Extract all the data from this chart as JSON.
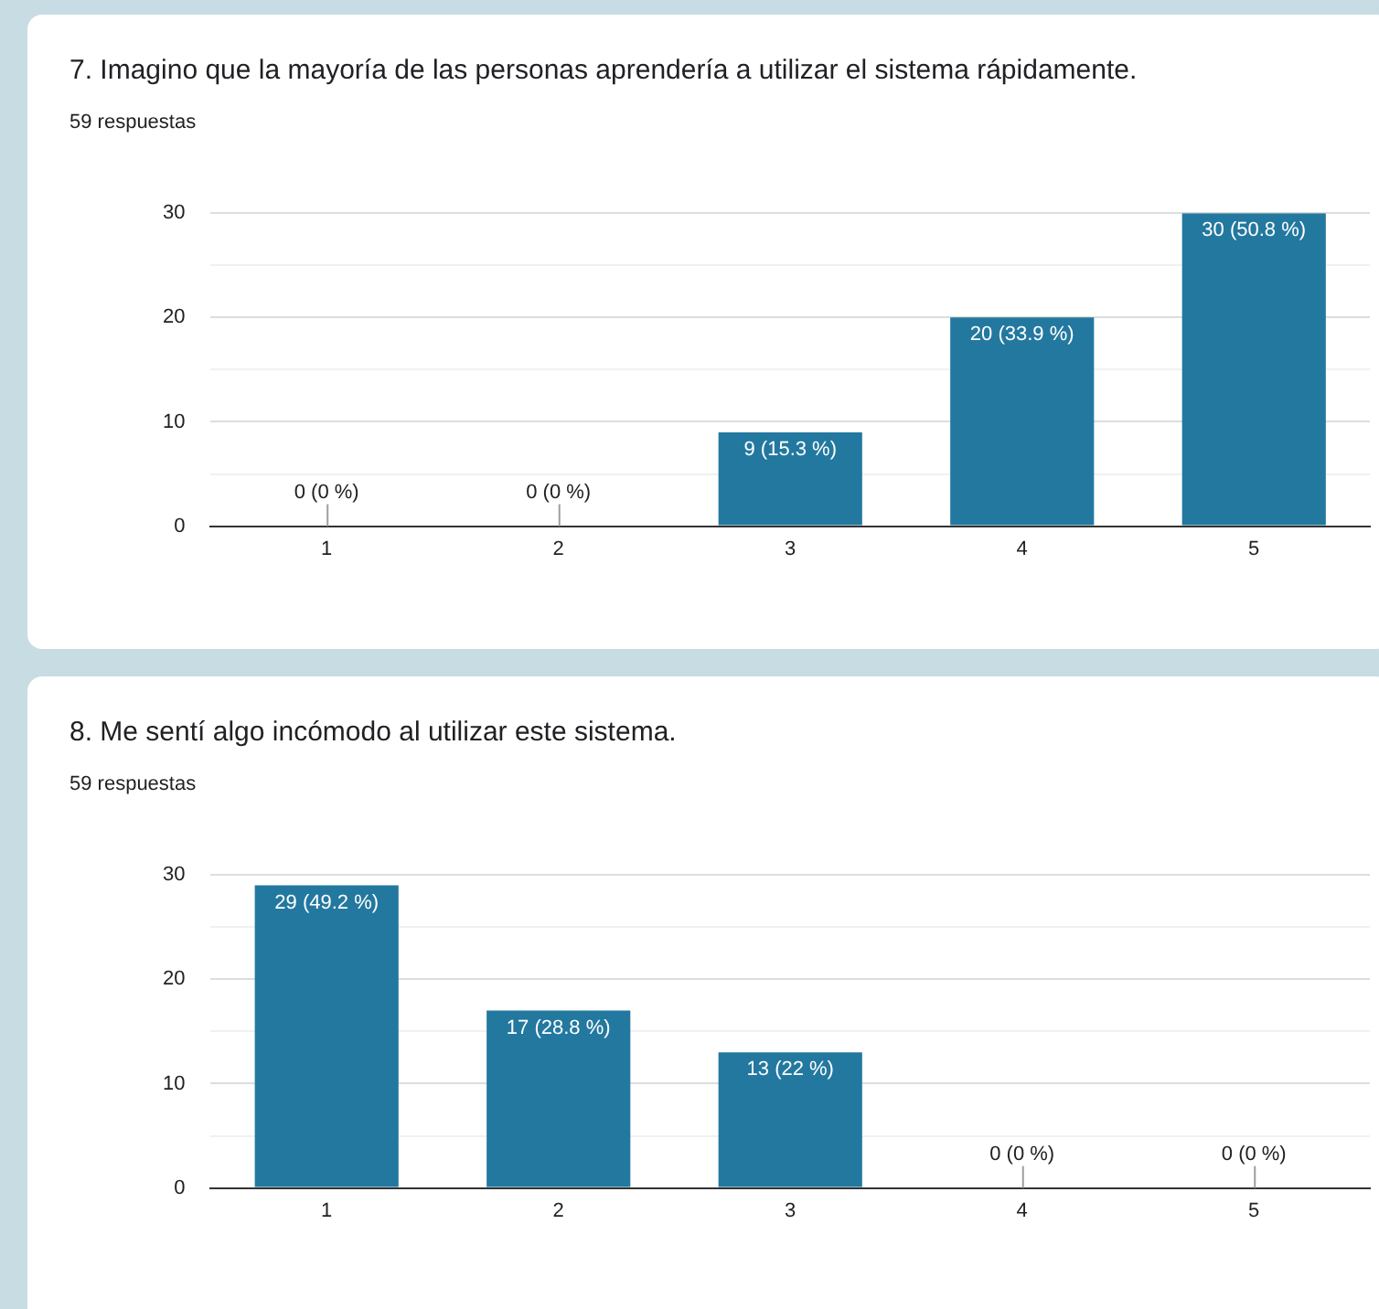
{
  "chart_data": [
    {
      "type": "bar",
      "title": "7. Imagino que la mayoría de las personas aprendería a utilizar el sistema rápidamente.",
      "subtitle": "59 respuestas",
      "categories": [
        "1",
        "2",
        "3",
        "4",
        "5"
      ],
      "values": [
        0,
        0,
        9,
        20,
        30
      ],
      "value_labels": [
        "0 (0 %)",
        "0 (0 %)",
        "9 (15.3 %)",
        "20 (33.9 %)",
        "30 (50.8 %)"
      ],
      "color": "#23789f",
      "ylim": [
        0,
        30
      ],
      "yticks": [
        0,
        {
          "value": 5,
          "label": null
        },
        10,
        {
          "value": 15,
          "label": null
        },
        20,
        {
          "value": 25,
          "label": null
        },
        30
      ],
      "grid": "y",
      "legend": false
    },
    {
      "type": "bar",
      "title": "8. Me sentí algo incómodo al utilizar este sistema.",
      "subtitle": "59 respuestas",
      "categories": [
        "1",
        "2",
        "3",
        "4",
        "5"
      ],
      "values": [
        29,
        17,
        13,
        0,
        0
      ],
      "value_labels": [
        "29 (49.2 %)",
        "17 (28.8 %)",
        "13 (22 %)",
        "0 (0 %)",
        "0 (0 %)"
      ],
      "color": "#23789f",
      "ylim": [
        0,
        30
      ],
      "yticks": [
        0,
        {
          "value": 5,
          "label": null
        },
        10,
        {
          "value": 15,
          "label": null
        },
        20,
        {
          "value": 25,
          "label": null
        },
        30
      ],
      "grid": "y",
      "legend": false
    }
  ]
}
